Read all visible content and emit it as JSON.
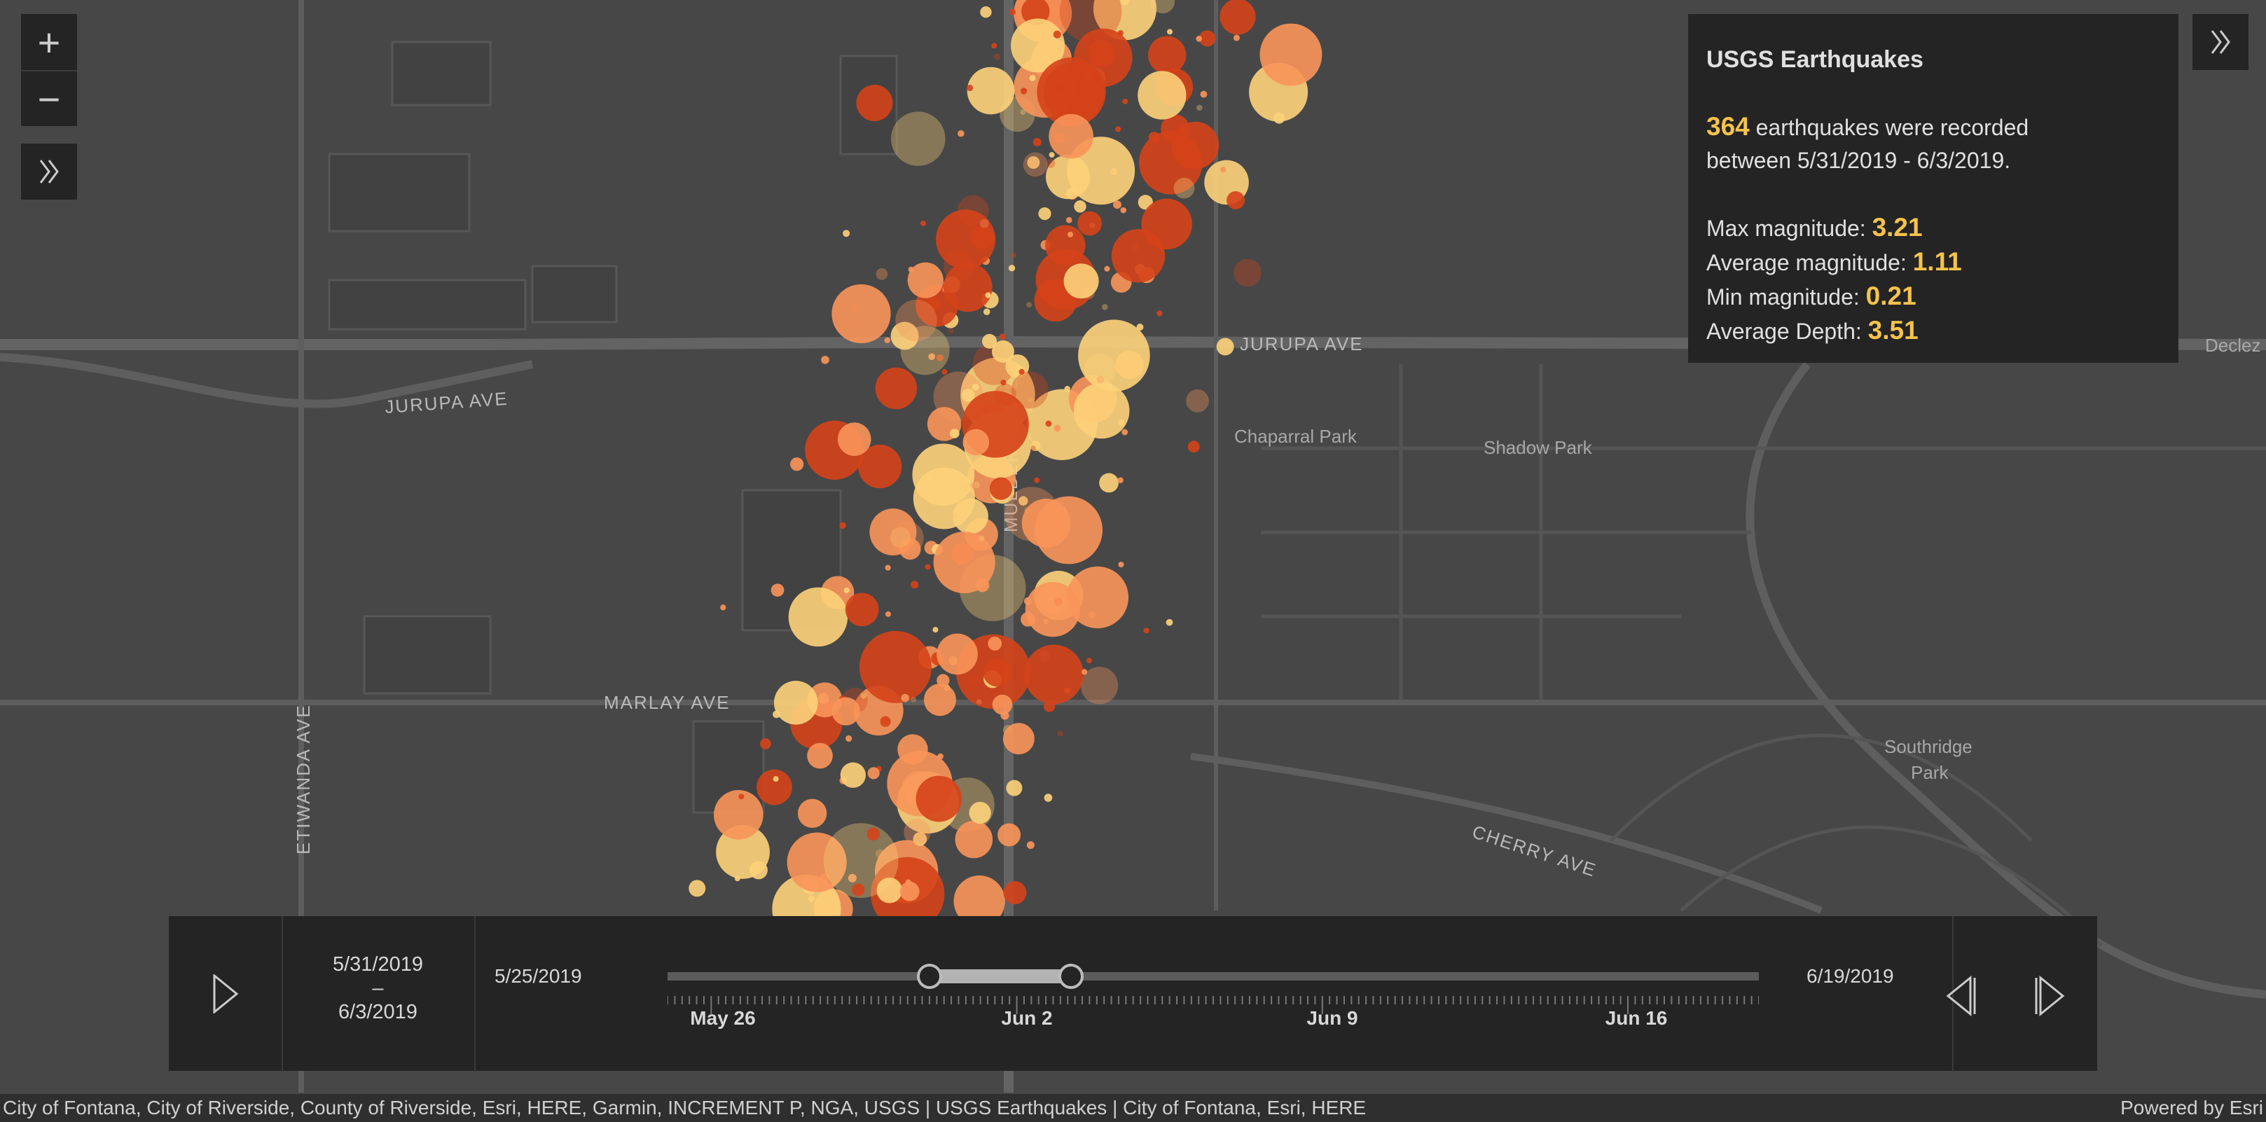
{
  "map": {
    "road_labels": {
      "jurupa_1": "JURUPA AVE",
      "jurupa_2": "JURUPA AVE",
      "mulberry": "MULBERRY AVE",
      "etiwanda": "ETIWANDA AVE",
      "marlay": "MARLAY AVE",
      "cherry": "CHERRY AVE",
      "declez": "Declez"
    },
    "park_labels": {
      "chaparral": "Chaparral Park",
      "shadow": "Shadow Park",
      "southridge_1": "Southridge",
      "southridge_2": "Park"
    },
    "colors": {
      "background": "#474747",
      "road": "#5e5e5e",
      "quake_small": "#fdd27a",
      "quake_mid": "#f9955a",
      "quake_large": "#d5431a"
    }
  },
  "controls": {
    "zoom_in": "+",
    "zoom_out": "−"
  },
  "panel": {
    "title": "USGS Earthquakes",
    "count": "364",
    "count_text": "earthquakes were recorded",
    "range_text": "between 5/31/2019 - 6/3/2019.",
    "stats": [
      {
        "label": "Max magnitude:",
        "value": "3.21"
      },
      {
        "label": "Average magnitude:",
        "value": "1.11"
      },
      {
        "label": "Min magnitude:",
        "value": "0.21"
      },
      {
        "label": "Average Depth:",
        "value": "3.51"
      }
    ],
    "accent": "#f6c34a"
  },
  "time_slider": {
    "current_start": "5/31/2019",
    "separator": "–",
    "current_end": "6/3/2019",
    "min_label": "5/25/2019",
    "max_label": "6/19/2019",
    "ticks": [
      "May 26",
      "Jun 2",
      "Jun 9",
      "Jun 16"
    ],
    "thumb_start_fraction": 0.24,
    "thumb_end_fraction": 0.37
  },
  "attribution": {
    "sources": "City of Fontana, City of Riverside, County of Riverside, Esri, HERE, Garmin, INCREMENT P, NGA, USGS | USGS Earthquakes | City of Fontana, Esri, HERE",
    "powered": "Powered by Esri"
  }
}
